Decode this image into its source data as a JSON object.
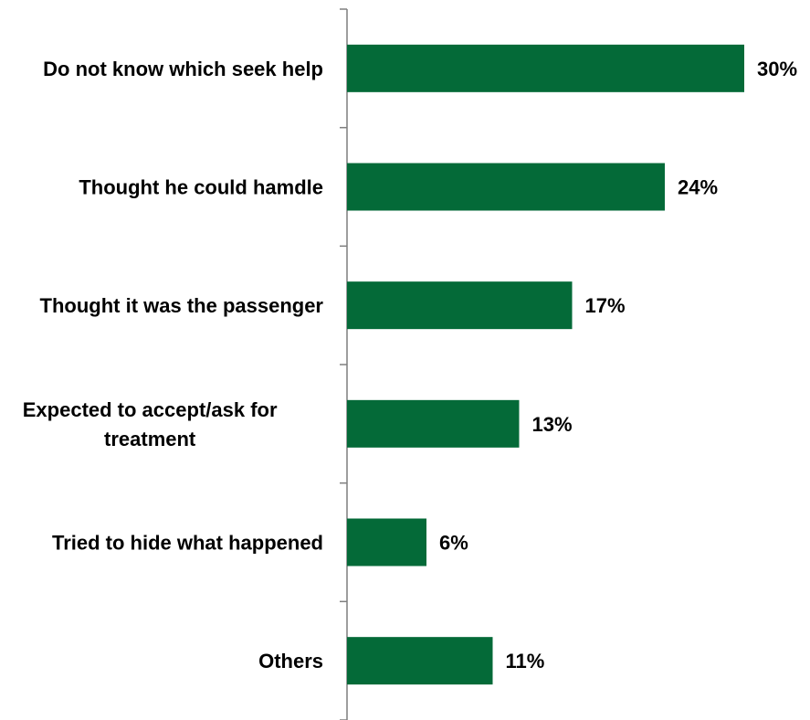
{
  "chart_data": {
    "type": "bar",
    "orientation": "horizontal",
    "title": "",
    "xlabel": "",
    "ylabel": "",
    "categories": [
      [
        "Do not know which seek help"
      ],
      [
        "Thought he could hamdle"
      ],
      [
        "Thought it was the passenger"
      ],
      [
        "Expected to accept/ask for",
        "treatment"
      ],
      [
        "Tried to hide what happened"
      ],
      [
        "Others"
      ]
    ],
    "values": [
      30,
      24,
      17,
      13,
      6,
      11
    ],
    "value_labels": [
      "30%",
      "24%",
      "17%",
      "13%",
      "6%",
      "11%"
    ],
    "xlim": [
      0,
      30
    ],
    "grid": false,
    "legend": "none",
    "bar_color": "#046a38",
    "axis_color": "#7f7f7f"
  }
}
